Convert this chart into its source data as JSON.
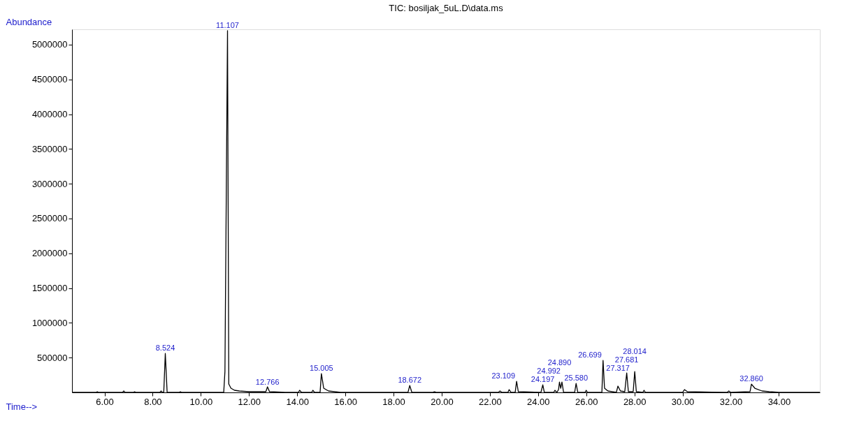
{
  "chart_data": {
    "type": "line",
    "title": "TIC: bosiljak_5uL.D\\data.ms",
    "xlabel": "Time-->",
    "ylabel": "Abundance",
    "xlim": [
      4.65,
      35.7
    ],
    "ylim": [
      0,
      5220000
    ],
    "xticks": [
      {
        "value": 6,
        "label": "6.00"
      },
      {
        "value": 8,
        "label": "8.00"
      },
      {
        "value": 10,
        "label": "10.00"
      },
      {
        "value": 12,
        "label": "12.00"
      },
      {
        "value": 14,
        "label": "14.00"
      },
      {
        "value": 16,
        "label": "16.00"
      },
      {
        "value": 18,
        "label": "18.00"
      },
      {
        "value": 20,
        "label": "20.00"
      },
      {
        "value": 22,
        "label": "22.00"
      },
      {
        "value": 24,
        "label": "24.00"
      },
      {
        "value": 26,
        "label": "26.00"
      },
      {
        "value": 28,
        "label": "28.00"
      },
      {
        "value": 30,
        "label": "30.00"
      },
      {
        "value": 32,
        "label": "32.00"
      },
      {
        "value": 34,
        "label": "34.00"
      }
    ],
    "yticks": [
      500000,
      1000000,
      1500000,
      2000000,
      2500000,
      3000000,
      3500000,
      4000000,
      4500000,
      5000000
    ],
    "grid": false,
    "series": [
      {
        "color": "#000000",
        "x": [
          4.65,
          5.65,
          5.7,
          5.75,
          6.75,
          6.8,
          6.85,
          7.2,
          7.25,
          7.3,
          8.3,
          8.35,
          8.4,
          8.46,
          8.524,
          8.6,
          8.65,
          9.1,
          9.15,
          9.2,
          10.95,
          11.0,
          11.107,
          11.16,
          11.25,
          11.4,
          11.6,
          12.0,
          12.7,
          12.766,
          12.85,
          13.5,
          14.05,
          14.1,
          14.18,
          14.6,
          14.65,
          14.72,
          14.95,
          15.005,
          15.1,
          15.3,
          15.8,
          17.5,
          18.6,
          18.672,
          18.76,
          19.6,
          19.7,
          19.8,
          22.35,
          22.42,
          22.5,
          22.75,
          22.8,
          22.88,
          23.05,
          23.109,
          23.18,
          24.12,
          24.197,
          24.26,
          24.65,
          24.7,
          24.78,
          24.85,
          24.89,
          24.94,
          24.992,
          25.06,
          25.52,
          25.58,
          25.65,
          25.95,
          26.0,
          26.05,
          26.65,
          26.699,
          26.76,
          26.9,
          27.25,
          27.317,
          27.42,
          27.6,
          27.681,
          27.75,
          27.95,
          28.014,
          28.08,
          28.35,
          28.4,
          28.46,
          30.0,
          30.08,
          30.2,
          31.85,
          31.92,
          32.0,
          32.8,
          32.86,
          33.0,
          33.3,
          33.6,
          34.0,
          35.7
        ],
        "values": [
          0,
          0,
          10000,
          0,
          0,
          20000,
          0,
          0,
          10000,
          0,
          0,
          20000,
          0,
          0,
          560000,
          0,
          0,
          0,
          10000,
          0,
          0,
          300000,
          5200000,
          120000,
          60000,
          30000,
          20000,
          10000,
          10000,
          80000,
          10000,
          0,
          0,
          30000,
          0,
          0,
          30000,
          0,
          0,
          270000,
          60000,
          20000,
          0,
          0,
          0,
          100000,
          0,
          0,
          10000,
          0,
          0,
          20000,
          0,
          0,
          40000,
          0,
          0,
          160000,
          10000,
          0,
          110000,
          0,
          0,
          30000,
          0,
          40000,
          150000,
          60000,
          150000,
          0,
          0,
          130000,
          0,
          0,
          30000,
          0,
          0,
          460000,
          60000,
          20000,
          0,
          90000,
          20000,
          10000,
          280000,
          10000,
          10000,
          300000,
          10000,
          0,
          30000,
          0,
          0,
          40000,
          10000,
          0,
          20000,
          0,
          10000,
          120000,
          60000,
          20000,
          10000,
          0,
          0
        ]
      }
    ],
    "annotations": [
      {
        "text": "8.524",
        "x": 8.524,
        "y": 560000
      },
      {
        "text": "11.107",
        "x": 11.107,
        "y": 5200000
      },
      {
        "text": "12.766",
        "x": 12.766,
        "y": 75000
      },
      {
        "text": "15.005",
        "x": 15.005,
        "y": 267000
      },
      {
        "text": "18.672",
        "x": 18.672,
        "y": 100000
      },
      {
        "text": "23.109",
        "x": 23.109,
        "y": 165000
      },
      {
        "text": "24.197",
        "x": 24.197,
        "y": 110000
      },
      {
        "text": "24.890",
        "x": 24.89,
        "y": 155000
      },
      {
        "text": "24.992",
        "x": 24.992,
        "y": 150000
      },
      {
        "text": "25.580",
        "x": 25.58,
        "y": 130000
      },
      {
        "text": "26.699",
        "x": 26.699,
        "y": 460000
      },
      {
        "text": "27.317",
        "x": 27.317,
        "y": 90000
      },
      {
        "text": "27.681",
        "x": 27.681,
        "y": 275000
      },
      {
        "text": "28.014",
        "x": 28.014,
        "y": 295000
      },
      {
        "text": "32.860",
        "x": 32.86,
        "y": 120000
      }
    ]
  }
}
